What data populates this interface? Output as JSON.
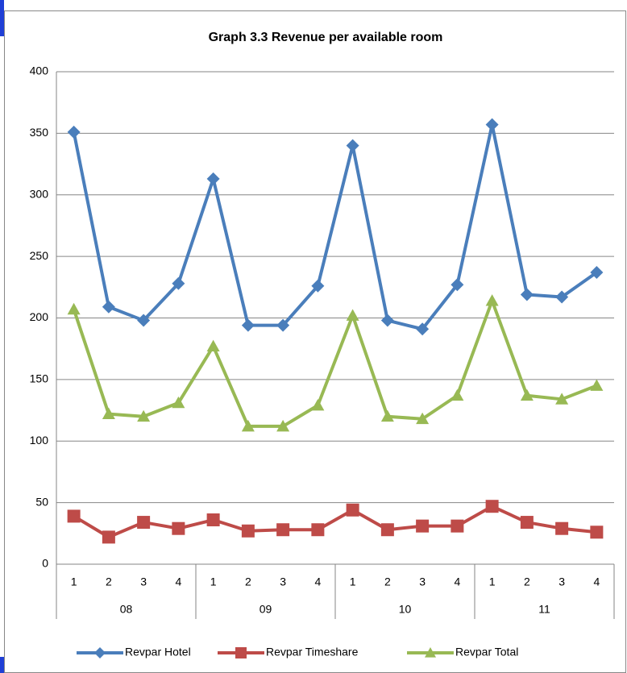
{
  "chart_data": {
    "type": "line",
    "title": "Graph 3.3 Revenue per available room",
    "categories": [
      "1",
      "2",
      "3",
      "4",
      "1",
      "2",
      "3",
      "4",
      "1",
      "2",
      "3",
      "4",
      "1",
      "2",
      "3",
      "4"
    ],
    "groups": [
      "08",
      "09",
      "10",
      "11"
    ],
    "series": [
      {
        "name": "Revpar Hotel",
        "color": "#4a7ebb",
        "marker": "diamond",
        "values": [
          351,
          209,
          198,
          228,
          313,
          194,
          194,
          226,
          340,
          198,
          191,
          227,
          357,
          219,
          217,
          237
        ]
      },
      {
        "name": "Revpar Timeshare",
        "color": "#be4b48",
        "marker": "square",
        "values": [
          39,
          22,
          34,
          29,
          36,
          27,
          28,
          28,
          44,
          28,
          31,
          31,
          47,
          34,
          29,
          26
        ]
      },
      {
        "name": "Revpar Total",
        "color": "#98b954",
        "marker": "triangle",
        "values": [
          207,
          122,
          120,
          131,
          177,
          112,
          112,
          129,
          202,
          120,
          118,
          137,
          214,
          137,
          134,
          145
        ]
      }
    ],
    "ylim": [
      0,
      400
    ],
    "yticks": [
      0,
      50,
      100,
      150,
      200,
      250,
      300,
      350,
      400
    ],
    "grid": true,
    "legend": "bottom"
  }
}
